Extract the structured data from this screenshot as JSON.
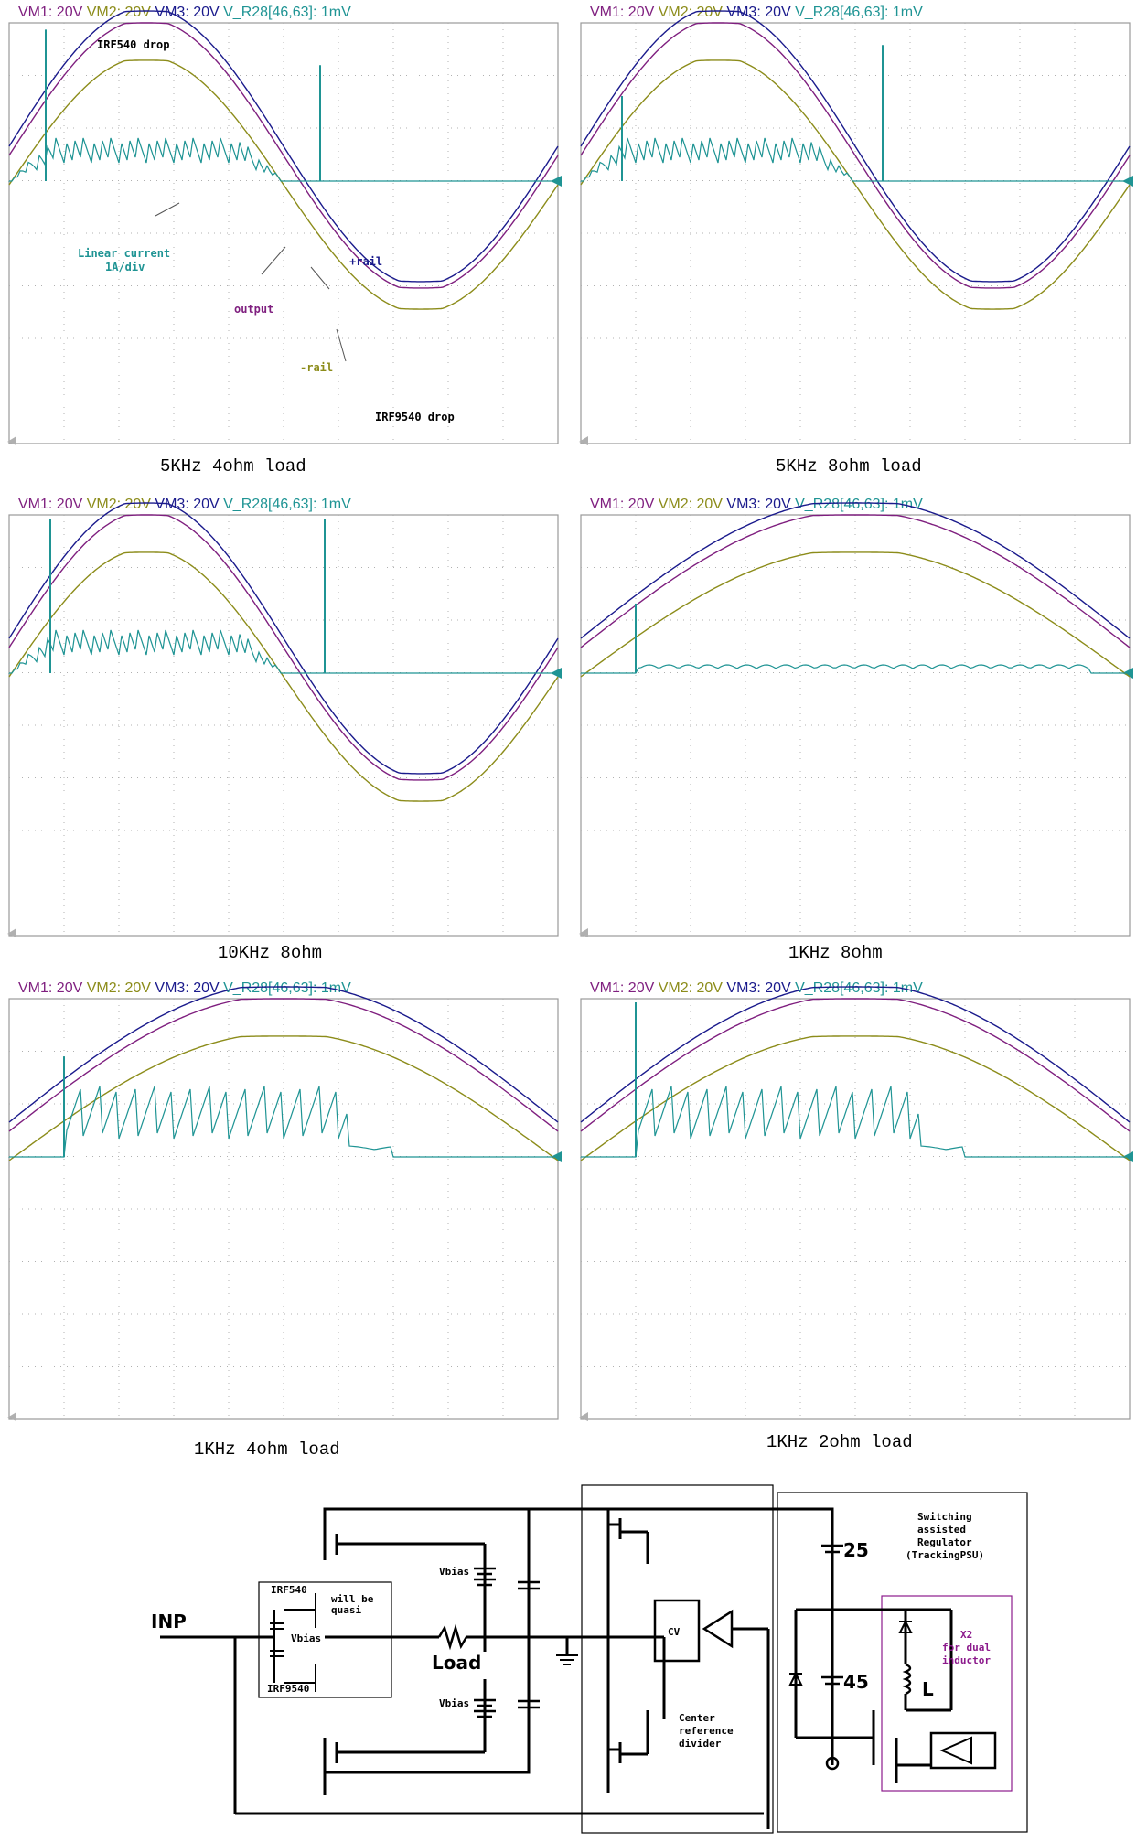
{
  "colors": {
    "vm1": "#7f1f7f",
    "vm2": "#8c8c1a",
    "vm3": "#1a1a8c",
    "current": "#1f9494",
    "grid": "#b0b0b0",
    "frame": "#999999",
    "sch_magenta": "#8c1a8c"
  },
  "legend": {
    "vm1": "VM1: 20V",
    "vm2": "VM2: 20V",
    "vm3": "VM3: 20V",
    "cur": "V_R28[46,63]: 1mV"
  },
  "panels": [
    {
      "caption": "5KHz  4ohm  load"
    },
    {
      "caption": "5KHz  8ohm  load"
    },
    {
      "caption": "10KHz  8ohm"
    },
    {
      "caption": "1KHz  8ohm"
    },
    {
      "caption": "1KHz  4ohm  load"
    },
    {
      "caption": "1KHz  2ohm  load"
    }
  ],
  "annotations": {
    "irf540_drop": "IRF540 drop",
    "linear_current": "Linear current",
    "per_div": "1A/div",
    "plus_rail": "+rail",
    "output": "output",
    "minus_rail": "-rail",
    "irf9540_drop": "IRF9540 drop"
  },
  "schematic": {
    "inp": "INP",
    "irf540": "IRF540",
    "irf9540": "IRF9540",
    "will_be_quasi_1": "will be",
    "will_be_quasi_2": "quasi",
    "vbias_inner": "Vbias",
    "vbias_top": "Vbias",
    "vbias_bottom": "Vbias",
    "load": "Load",
    "cv": "CV",
    "center_ref_1": "Center",
    "center_ref_2": "reference",
    "center_ref_3": "divider",
    "switching_1": "Switching",
    "switching_2": "assisted",
    "switching_3": "Regulator",
    "switching_4": "(TrackingPSU)",
    "x2_1": "X2",
    "x2_2": "for dual",
    "x2_3": "inductor",
    "v25": "25",
    "v45": "45",
    "inductor": "L"
  }
}
